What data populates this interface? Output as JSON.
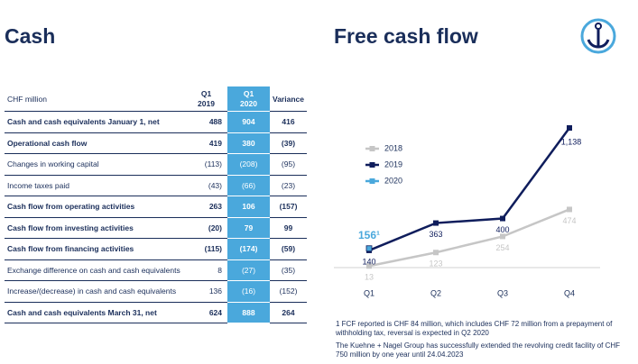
{
  "left": {
    "title": "Cash",
    "table": {
      "header": [
        "CHF million",
        "Q1 2019",
        "Q1 2020",
        "Variance"
      ],
      "rows": [
        [
          "Cash and cash equivalents January 1, net",
          "488",
          "904",
          "416"
        ],
        [
          "Operational cash flow",
          "419",
          "380",
          "(39)"
        ],
        [
          "Changes in working capital",
          "(113)",
          "(208)",
          "(95)"
        ],
        [
          "Income taxes paid",
          "(43)",
          "(66)",
          "(23)"
        ],
        [
          "Cash flow from operating activities",
          "263",
          "106",
          "(157)"
        ],
        [
          "Cash flow from investing activities",
          "(20)",
          "79",
          "99"
        ],
        [
          "Cash flow from financing activities",
          "(115)",
          "(174)",
          "(59)"
        ],
        [
          "Exchange difference on cash and cash equivalents",
          "8",
          "(27)",
          "(35)"
        ],
        [
          "Increase/(decrease) in cash and cash equivalents",
          "136",
          "(16)",
          "(152)"
        ],
        [
          "Cash and cash equivalents March 31, net",
          "624",
          "888",
          "264"
        ]
      ]
    }
  },
  "chart_data": {
    "type": "line",
    "title": "Free cash flow",
    "categories": [
      "Q1",
      "Q2",
      "Q3",
      "Q4"
    ],
    "series": [
      {
        "name": "2018",
        "color": "#c6c6c6",
        "values": [
          13,
          123,
          254,
          474
        ]
      },
      {
        "name": "2019",
        "color": "#0f1d5c",
        "values": [
          140,
          363,
          400,
          1138
        ],
        "value_labels": [
          "140",
          "363",
          "400",
          "1,138"
        ]
      },
      {
        "name": "2020",
        "color": "#4aa8dc",
        "values": [
          156,
          null,
          null,
          null
        ],
        "value_labels": [
          "156¹",
          null,
          null,
          null
        ]
      }
    ]
  },
  "footnotes": [
    "1 FCF reported is CHF 84 million, which includes CHF 72 million from a prepayment of withholding tax, reversal is expected in Q2 2020",
    "The Kuehne + Nagel Group has successfully extended the revolving credit facility of CHF 750 million by one year until 24.04.2023"
  ]
}
